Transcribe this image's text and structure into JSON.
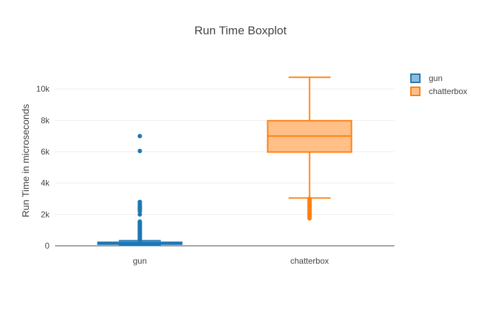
{
  "chart_data": {
    "type": "box",
    "title": "Run Time Boxplot",
    "xlabel": "",
    "ylabel": "Run Time in microseconds",
    "categories": [
      "gun",
      "chatterbox"
    ],
    "ylim": [
      0,
      11300
    ],
    "yticks": [
      0,
      2000,
      4000,
      6000,
      8000,
      10000
    ],
    "ytick_labels": [
      "0",
      "2k",
      "4k",
      "6k",
      "8k",
      "10k"
    ],
    "grid": true,
    "legend_position": "top-right",
    "series": [
      {
        "name": "gun",
        "color": "#1f77b4",
        "fill": "#8fbbd9",
        "min": 20,
        "q1": 100,
        "median": 150,
        "q3": 230,
        "max": 330,
        "outliers": [
          7000,
          6050,
          2800,
          2700,
          2600,
          2500,
          2450,
          2400,
          2350,
          2300,
          2200,
          2000,
          1550,
          1500,
          1450,
          1400,
          1350,
          1300,
          1250,
          1200,
          1150,
          1100,
          1050,
          1000,
          950,
          900,
          850,
          800,
          750,
          700,
          650,
          600,
          550,
          500,
          450,
          400,
          370
        ]
      },
      {
        "name": "chatterbox",
        "color": "#ff7f0e",
        "fill": "#ffbf86",
        "min": 3050,
        "q1": 5980,
        "median": 7000,
        "q3": 7980,
        "max": 10750,
        "outliers": [
          3000,
          2950,
          2900,
          2850,
          2800,
          2750,
          2700,
          2650,
          2600,
          2550,
          2500,
          2450,
          2400,
          2350,
          2300,
          2250,
          2200,
          2150,
          2100,
          2050,
          2000,
          1950,
          1900,
          1850,
          1800,
          1750
        ]
      }
    ]
  }
}
